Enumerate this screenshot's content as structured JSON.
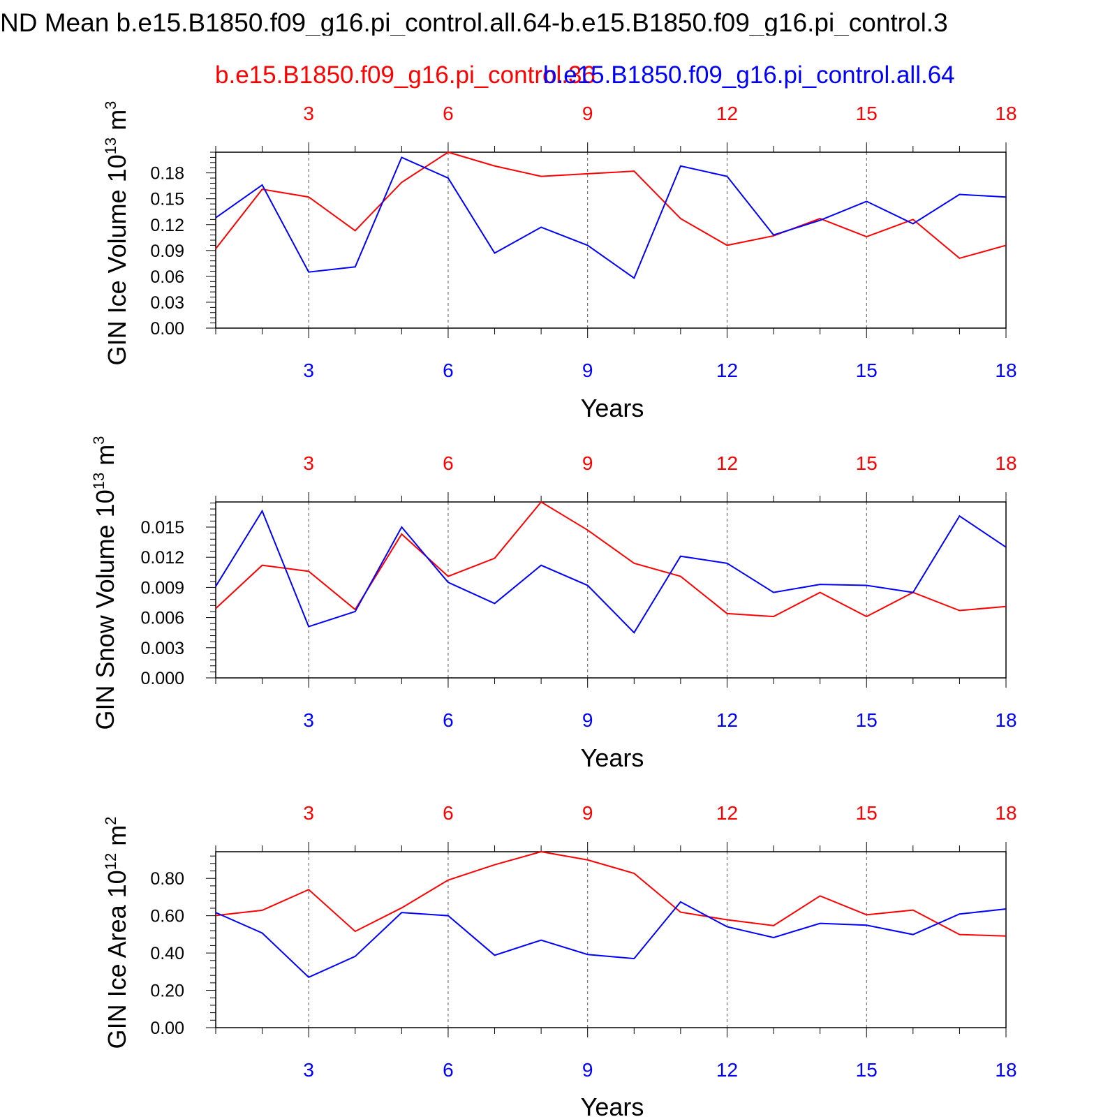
{
  "title": "ND Mean b.e15.B1850.f09_g16.pi_control.all.64-b.e15.B1850.f09_g16.pi_control.3",
  "legend": {
    "red": "b.e15.B1850.f09_g16.pi_control.36",
    "blue": "b.e15.B1850.f09_g16.pi_control.all.64"
  },
  "colors": {
    "red": "#ff0000",
    "blue": "#0000ff",
    "axis": "#000000"
  },
  "chart_data": [
    {
      "type": "line",
      "ylabel": "GIN Ice Volume 10",
      "ylabel_sup": "13",
      "ylabel_unit": " m",
      "ylabel_unit_sup": "3",
      "xlabel": "Years",
      "xlim": [
        1,
        18
      ],
      "ylim": [
        0,
        0.204
      ],
      "yticks": [
        "0.00",
        "0.03",
        "0.06",
        "0.09",
        "0.12",
        "0.15",
        "0.18"
      ],
      "xticks": [
        "3",
        "6",
        "9",
        "12",
        "15",
        "18"
      ],
      "x": [
        1,
        2,
        3,
        4,
        5,
        6,
        7,
        8,
        9,
        10,
        11,
        12,
        13,
        14,
        15,
        16,
        17,
        18
      ],
      "series": [
        {
          "name": "b.e15.B1850.f09_g16.pi_control.36",
          "color": "#ff0000",
          "values": [
            0.092,
            0.161,
            0.152,
            0.113,
            0.169,
            0.204,
            0.188,
            0.176,
            0.179,
            0.182,
            0.127,
            0.096,
            0.107,
            0.127,
            0.106,
            0.126,
            0.081,
            0.096
          ]
        },
        {
          "name": "b.e15.B1850.f09_g16.pi_control.all.64",
          "color": "#0000ff",
          "values": [
            0.128,
            0.166,
            0.065,
            0.071,
            0.198,
            0.174,
            0.087,
            0.117,
            0.096,
            0.058,
            0.188,
            0.176,
            0.108,
            0.125,
            0.147,
            0.121,
            0.155,
            0.152
          ]
        }
      ]
    },
    {
      "type": "line",
      "ylabel": "GIN Snow Volume 10",
      "ylabel_sup": "13",
      "ylabel_unit": " m",
      "ylabel_unit_sup": "3",
      "xlabel": "Years",
      "xlim": [
        1,
        18
      ],
      "ylim": [
        0,
        0.0175
      ],
      "yticks": [
        "0.000",
        "0.003",
        "0.006",
        "0.009",
        "0.012",
        "0.015"
      ],
      "xticks": [
        "3",
        "6",
        "9",
        "12",
        "15",
        "18"
      ],
      "x": [
        1,
        2,
        3,
        4,
        5,
        6,
        7,
        8,
        9,
        10,
        11,
        12,
        13,
        14,
        15,
        16,
        17,
        18
      ],
      "series": [
        {
          "name": "b.e15.B1850.f09_g16.pi_control.36",
          "color": "#ff0000",
          "values": [
            0.0069,
            0.0112,
            0.0106,
            0.0068,
            0.0143,
            0.0101,
            0.0119,
            0.0175,
            0.0147,
            0.0114,
            0.0101,
            0.0064,
            0.0061,
            0.0085,
            0.0061,
            0.0085,
            0.0067,
            0.0071
          ]
        },
        {
          "name": "b.e15.B1850.f09_g16.pi_control.all.64",
          "color": "#0000ff",
          "values": [
            0.0091,
            0.0166,
            0.0051,
            0.0066,
            0.015,
            0.0095,
            0.0074,
            0.0112,
            0.0092,
            0.0045,
            0.0121,
            0.0114,
            0.0085,
            0.0093,
            0.0092,
            0.0085,
            0.0161,
            0.013
          ]
        }
      ]
    },
    {
      "type": "line",
      "ylabel": "GIN Ice Area 10",
      "ylabel_sup": "12",
      "ylabel_unit": " m",
      "ylabel_unit_sup": "2",
      "xlabel": "Years",
      "xlim": [
        1,
        18
      ],
      "ylim": [
        0,
        0.943
      ],
      "yticks": [
        "0.00",
        "0.20",
        "0.40",
        "0.60",
        "0.80"
      ],
      "xticks": [
        "3",
        "6",
        "9",
        "12",
        "15",
        "18"
      ],
      "x": [
        1,
        2,
        3,
        4,
        5,
        6,
        7,
        8,
        9,
        10,
        11,
        12,
        13,
        14,
        15,
        16,
        17,
        18
      ],
      "series": [
        {
          "name": "b.e15.B1850.f09_g16.pi_control.36",
          "color": "#ff0000",
          "values": [
            0.601,
            0.629,
            0.74,
            0.516,
            0.642,
            0.791,
            0.873,
            0.943,
            0.899,
            0.827,
            0.619,
            0.578,
            0.547,
            0.706,
            0.605,
            0.63,
            0.499,
            0.491
          ]
        },
        {
          "name": "b.e15.B1850.f09_g16.pi_control.all.64",
          "color": "#0000ff",
          "values": [
            0.617,
            0.507,
            0.27,
            0.382,
            0.617,
            0.6,
            0.388,
            0.469,
            0.392,
            0.37,
            0.674,
            0.541,
            0.483,
            0.559,
            0.549,
            0.499,
            0.609,
            0.636
          ]
        }
      ]
    }
  ]
}
